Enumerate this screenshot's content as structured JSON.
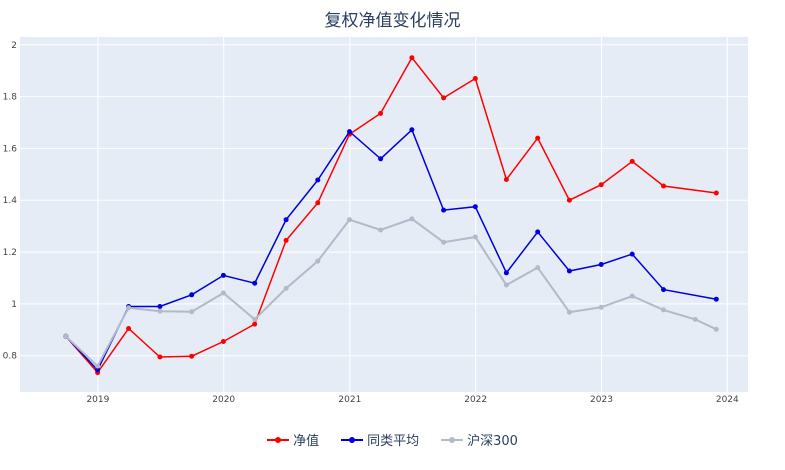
{
  "chart_data": {
    "type": "line",
    "title": "复权净值变化情况",
    "xlabel": "",
    "ylabel": "",
    "ylim": [
      0.66,
      2.03
    ],
    "xlim": [
      "2018-05-20",
      "2024-03-01"
    ],
    "yticks": [
      0.8,
      1,
      1.2,
      1.4,
      1.6,
      1.8,
      2
    ],
    "ytick_labels": [
      "0.8",
      "1",
      "1.2",
      "1.4",
      "1.6",
      "1.8",
      "2"
    ],
    "xticks": [
      "2019-01-01",
      "2020-01-01",
      "2021-01-01",
      "2022-01-01",
      "2023-01-01",
      "2024-01-01"
    ],
    "xtick_labels": [
      "2019",
      "2020",
      "2021",
      "2022",
      "2023",
      "2024"
    ],
    "grid": true,
    "legend_position": "bottom-center",
    "x": [
      "2018-09-30",
      "2018-12-31",
      "2019-03-31",
      "2019-06-30",
      "2019-09-30",
      "2019-12-31",
      "2020-03-31",
      "2020-06-30",
      "2020-09-30",
      "2020-12-31",
      "2021-03-31",
      "2021-06-30",
      "2021-09-30",
      "2021-12-31",
      "2022-03-31",
      "2022-06-30",
      "2022-09-30",
      "2022-12-31",
      "2023-03-31",
      "2023-06-30",
      "2023-09-30",
      "2023-11-30"
    ],
    "series": [
      {
        "name": "净值",
        "color": "#ff0000",
        "values": [
          0.875,
          0.735,
          0.905,
          0.795,
          0.798,
          0.855,
          0.922,
          1.245,
          1.39,
          1.655,
          1.735,
          1.95,
          1.795,
          1.87,
          1.48,
          1.64,
          1.4,
          1.46,
          1.55,
          1.455,
          null,
          1.428
        ]
      },
      {
        "name": "同类平均",
        "color": "#0000dd",
        "values": [
          0.875,
          0.745,
          0.99,
          0.99,
          1.035,
          1.11,
          1.08,
          1.325,
          1.478,
          1.665,
          1.56,
          1.672,
          1.362,
          1.375,
          1.12,
          1.278,
          1.127,
          1.152,
          1.192,
          1.055,
          null,
          1.018
        ]
      },
      {
        "name": "沪深300",
        "color": "#b0bac8",
        "values": [
          0.875,
          0.76,
          0.985,
          0.972,
          0.97,
          1.042,
          0.94,
          1.06,
          1.165,
          1.325,
          1.285,
          1.328,
          1.238,
          1.258,
          1.073,
          1.14,
          0.968,
          0.987,
          1.03,
          0.977,
          0.94,
          0.902
        ]
      }
    ]
  }
}
